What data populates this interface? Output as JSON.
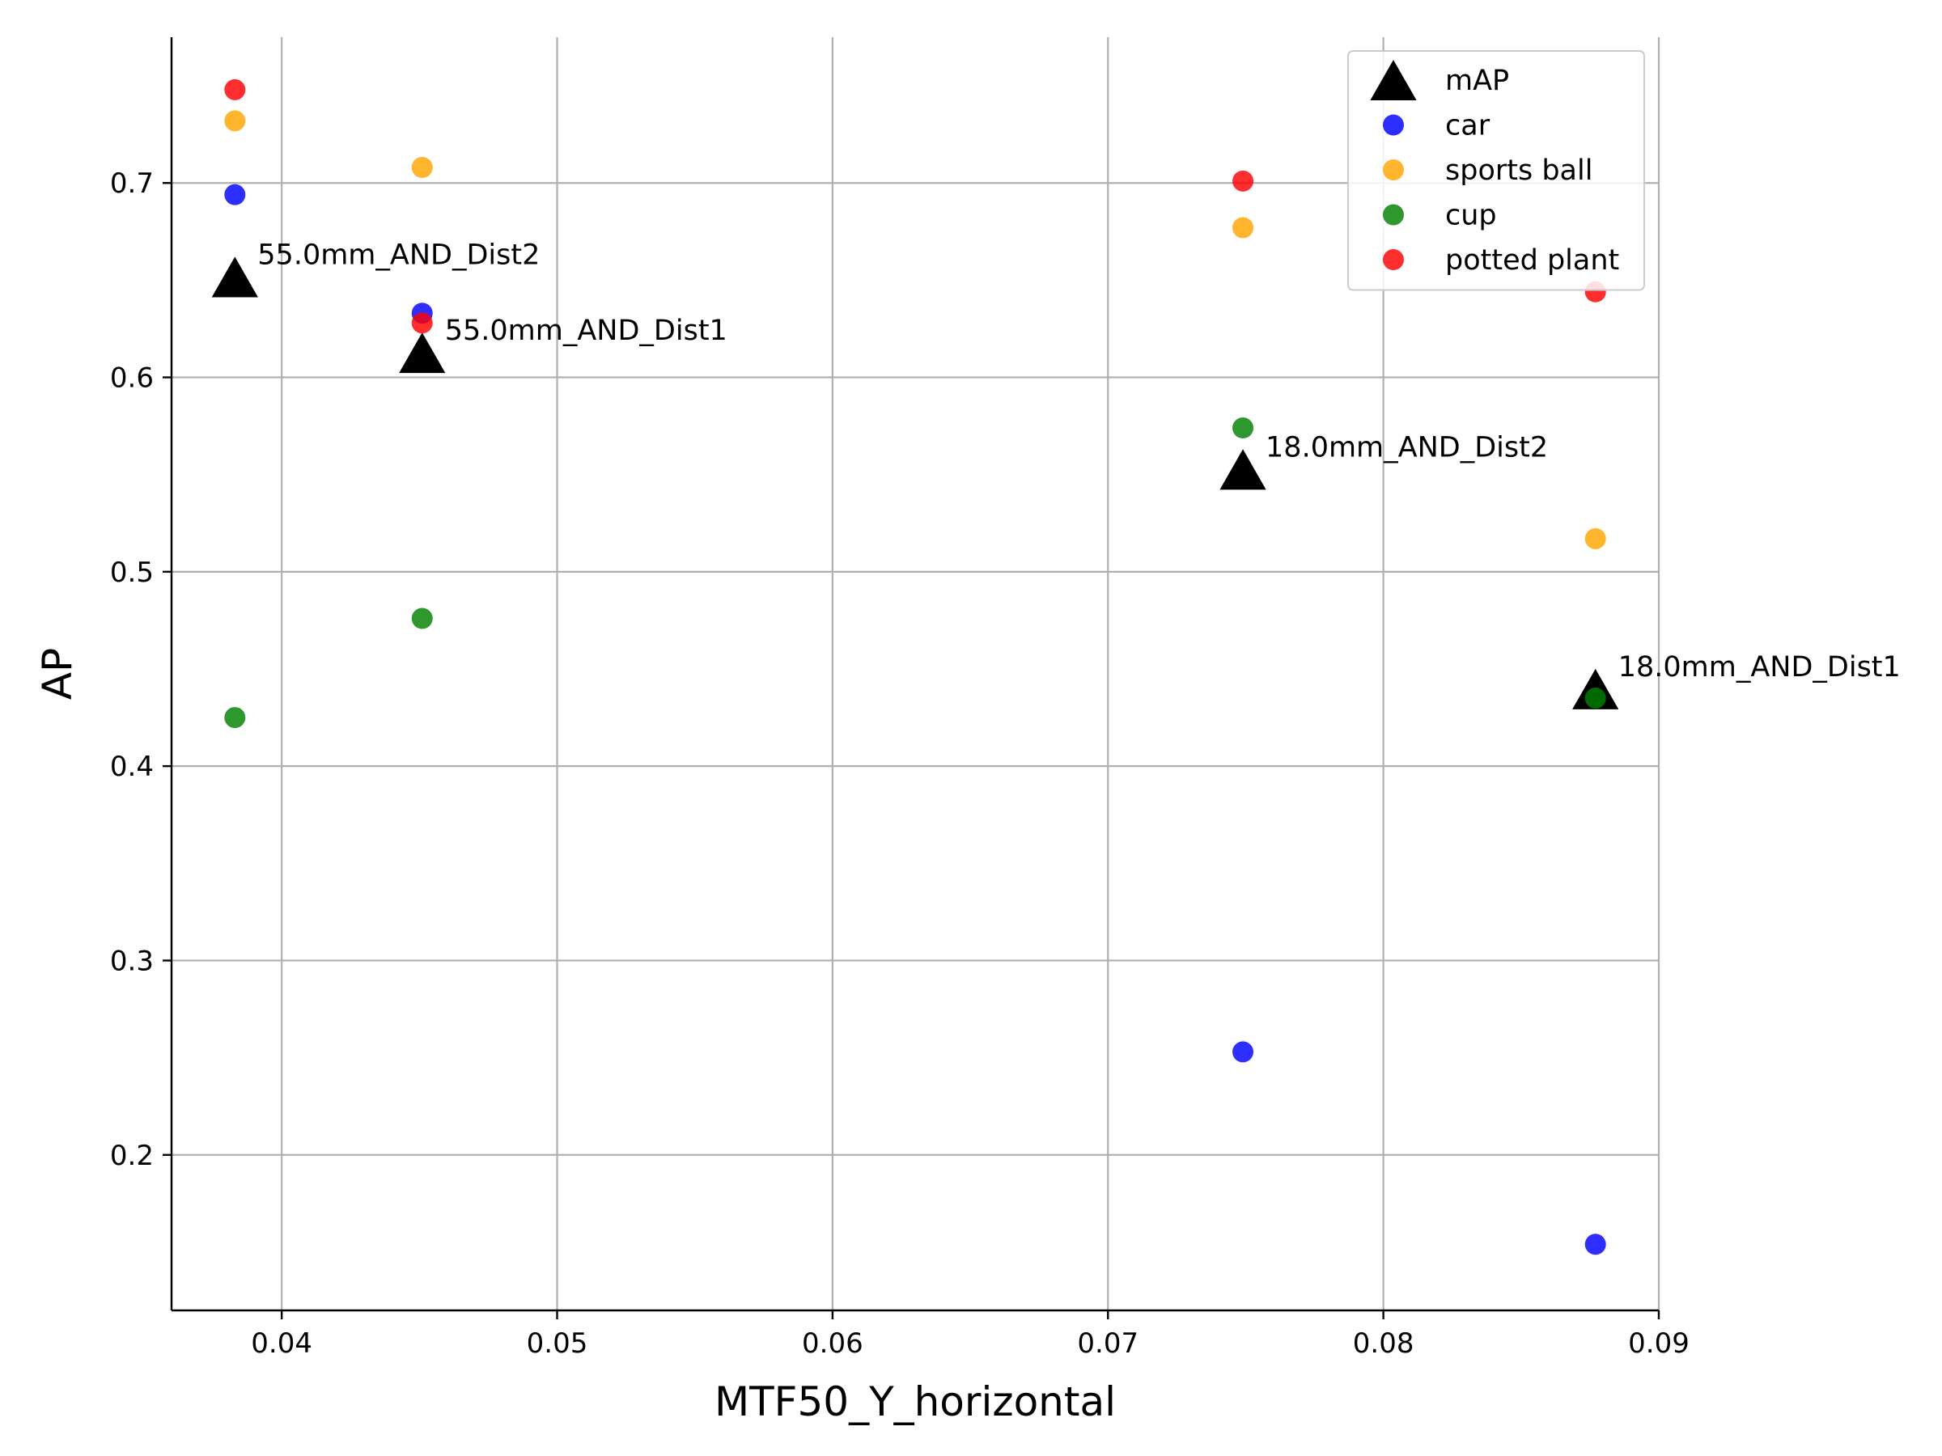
{
  "chart_data": {
    "type": "scatter",
    "xlabel": "MTF50_Y_horizontal",
    "ylabel": "AP",
    "xlim": [
      0.036,
      0.09
    ],
    "ylim": [
      0.12,
      0.775
    ],
    "x_ticks": [
      0.04,
      0.05,
      0.06,
      0.07,
      0.08,
      0.09
    ],
    "x_tick_labels": [
      "0.04",
      "0.05",
      "0.06",
      "0.07",
      "0.08",
      "0.09"
    ],
    "y_ticks": [
      0.2,
      0.3,
      0.4,
      0.5,
      0.6,
      0.7
    ],
    "y_tick_labels": [
      "0.2",
      "0.3",
      "0.4",
      "0.5",
      "0.6",
      "0.7"
    ],
    "grid": true,
    "legend_position": "top-right",
    "series": [
      {
        "name": "mAP",
        "marker": "triangle",
        "color": "#000000",
        "points": [
          {
            "x": 0.0383,
            "y": 0.65
          },
          {
            "x": 0.0451,
            "y": 0.611
          },
          {
            "x": 0.0749,
            "y": 0.551
          },
          {
            "x": 0.0877,
            "y": 0.438
          }
        ]
      },
      {
        "name": "car",
        "marker": "circle",
        "color": "#0000ff",
        "points": [
          {
            "x": 0.0383,
            "y": 0.694
          },
          {
            "x": 0.0451,
            "y": 0.633
          },
          {
            "x": 0.0749,
            "y": 0.253
          },
          {
            "x": 0.0877,
            "y": 0.154
          }
        ]
      },
      {
        "name": "sports ball",
        "marker": "circle",
        "color": "#ffa500",
        "points": [
          {
            "x": 0.0383,
            "y": 0.732
          },
          {
            "x": 0.0451,
            "y": 0.708
          },
          {
            "x": 0.0749,
            "y": 0.677
          },
          {
            "x": 0.0877,
            "y": 0.517
          }
        ]
      },
      {
        "name": "cup",
        "marker": "circle",
        "color": "#008000",
        "points": [
          {
            "x": 0.0383,
            "y": 0.425
          },
          {
            "x": 0.0451,
            "y": 0.476
          },
          {
            "x": 0.0749,
            "y": 0.574
          },
          {
            "x": 0.0877,
            "y": 0.435
          }
        ]
      },
      {
        "name": "potted plant",
        "marker": "circle",
        "color": "#ff0000",
        "points": [
          {
            "x": 0.0383,
            "y": 0.748
          },
          {
            "x": 0.0451,
            "y": 0.628
          },
          {
            "x": 0.0749,
            "y": 0.701
          },
          {
            "x": 0.0877,
            "y": 0.644
          }
        ]
      }
    ],
    "annotations": [
      {
        "text": "55.0mm_AND_Dist2",
        "x": 0.0383,
        "y": 0.65
      },
      {
        "text": "55.0mm_AND_Dist1",
        "x": 0.0451,
        "y": 0.611
      },
      {
        "text": "18.0mm_AND_Dist2",
        "x": 0.0749,
        "y": 0.551
      },
      {
        "text": "18.0mm_AND_Dist1",
        "x": 0.0877,
        "y": 0.438
      }
    ]
  }
}
